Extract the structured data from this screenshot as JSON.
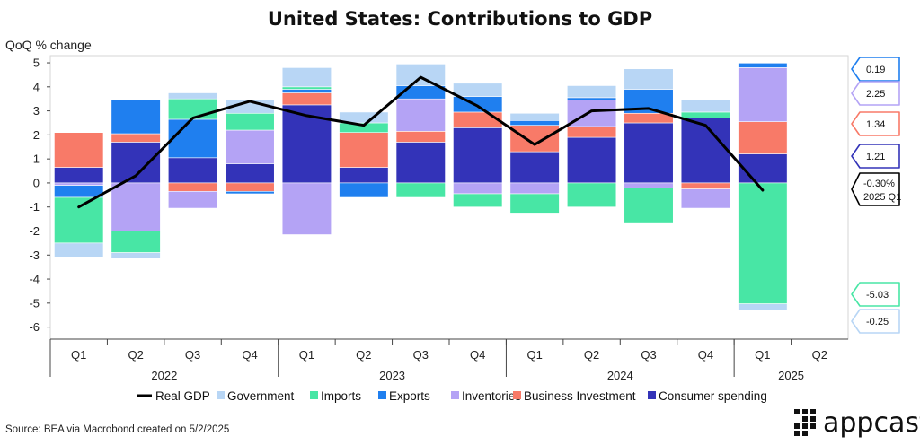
{
  "chart_data": {
    "type": "bar",
    "title": "United States: Contributions to GDP",
    "ylabel": "QoQ % change",
    "ylim": [
      -6.5,
      5.3
    ],
    "yticks": [
      5,
      4,
      3,
      2,
      1,
      0,
      -1,
      -2,
      -3,
      -4,
      -5,
      -6
    ],
    "categories": [
      "Q1",
      "Q2",
      "Q3",
      "Q4",
      "Q1",
      "Q2",
      "Q3",
      "Q4",
      "Q1",
      "Q2",
      "Q3",
      "Q4",
      "Q1",
      "Q2"
    ],
    "years": [
      {
        "label": "2022",
        "start": 0,
        "end": 3
      },
      {
        "label": "2023",
        "start": 4,
        "end": 7
      },
      {
        "label": "2024",
        "start": 8,
        "end": 11
      },
      {
        "label": "2025",
        "start": 12,
        "end": 13
      }
    ],
    "series": [
      {
        "name": "Consumer spending",
        "color": "#3333b8",
        "values": [
          0.65,
          1.7,
          1.05,
          0.8,
          3.25,
          0.65,
          1.7,
          2.3,
          1.3,
          1.9,
          2.5,
          2.7,
          1.21,
          null
        ]
      },
      {
        "name": "Business Investment",
        "color": "#f87a68",
        "values": [
          1.45,
          0.35,
          -0.35,
          -0.35,
          0.5,
          1.45,
          0.45,
          0.65,
          1.1,
          0.45,
          0.4,
          -0.25,
          1.34,
          null
        ]
      },
      {
        "name": "Inventories",
        "color": "#b4a3f5",
        "values": [
          -0.1,
          -2.0,
          -0.7,
          1.4,
          -2.15,
          0.0,
          1.35,
          -0.45,
          -0.45,
          1.1,
          -0.2,
          -0.8,
          2.25,
          null
        ]
      },
      {
        "name": "Exports",
        "color": "#1f7fef",
        "values": [
          -0.5,
          1.4,
          1.6,
          -0.1,
          0.15,
          -0.6,
          0.55,
          0.65,
          0.2,
          0.1,
          1.0,
          0.0,
          0.19,
          null
        ]
      },
      {
        "name": "Imports",
        "color": "#48e6a5",
        "values": [
          -1.9,
          -0.9,
          0.85,
          0.7,
          0.1,
          0.4,
          -0.6,
          -0.55,
          -0.8,
          -1.0,
          -1.45,
          0.25,
          -5.03,
          null
        ]
      },
      {
        "name": "Government",
        "color": "#b8d6f5",
        "values": [
          -0.6,
          -0.25,
          0.25,
          0.55,
          0.8,
          0.45,
          0.9,
          0.55,
          0.3,
          0.5,
          0.85,
          0.5,
          -0.25,
          null
        ]
      }
    ],
    "line": {
      "name": "Real GDP",
      "color": "#000000",
      "values": [
        -1.0,
        0.3,
        2.7,
        3.4,
        2.8,
        2.4,
        4.4,
        3.2,
        1.6,
        3.0,
        3.1,
        2.4,
        -0.3,
        null
      ]
    },
    "legend_position": "bottom",
    "grid": false
  },
  "callouts": [
    {
      "value": 0.19,
      "text": "0.19",
      "color": "#1f7fef"
    },
    {
      "value": 2.25,
      "text": "2.25",
      "color": "#b4a3f5"
    },
    {
      "value": 1.34,
      "text": "1.34",
      "color": "#f87a68"
    },
    {
      "value": 1.21,
      "text": "1.21",
      "color": "#3333b8"
    },
    {
      "value": -0.3,
      "text": "-0.30%",
      "text2": "2025 Q1",
      "color": "#000000"
    },
    {
      "value": -5.03,
      "text": "-5.03",
      "color": "#48e6a5"
    },
    {
      "value": -0.25,
      "text": "-0.25",
      "color": "#b8d6f5"
    }
  ],
  "source": "Source: BEA via Macrobond created on 5/2/2025",
  "logo_text": "appcast"
}
